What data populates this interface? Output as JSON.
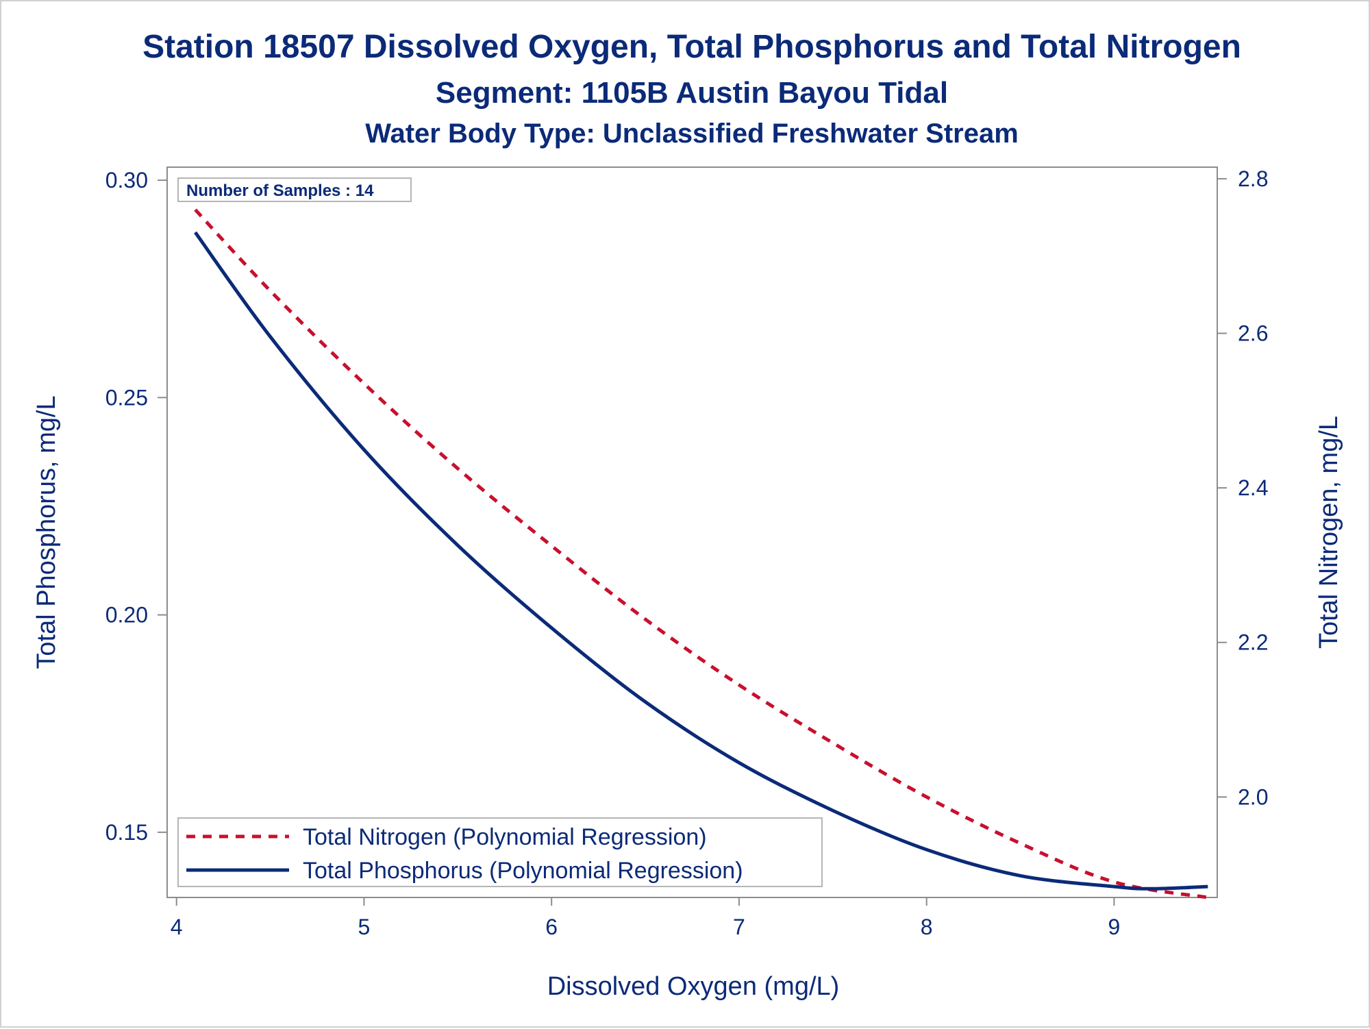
{
  "titles": {
    "line1": "Station 18507  Dissolved Oxygen, Total Phosphorus and Total Nitrogen",
    "line2": "Segment: 1105B  Austin Bayou Tidal",
    "line3": "Water Body Type: Unclassified Freshwater Stream"
  },
  "inset": {
    "samples_label": "Number of Samples : 14"
  },
  "legend": {
    "nitrogen": "Total Nitrogen (Polynomial Regression)",
    "phosphorus": "Total Phosphorus (Polynomial Regression)"
  },
  "colors": {
    "text": "#0b2a78",
    "nitrogen": "#c8102e",
    "phosphorus": "#0b2a78",
    "axis": "#8c8c8c"
  },
  "chart_data": {
    "type": "line",
    "title": "Station 18507  Dissolved Oxygen, Total Phosphorus and Total Nitrogen",
    "subtitle": [
      "Segment: 1105B  Austin Bayou Tidal",
      "Water Body Type: Unclassified Freshwater Stream"
    ],
    "xlabel": "Dissolved Oxygen (mg/L)",
    "ylabel": "Total Phosphorus, mg/L",
    "y2label": "Total Nitrogen, mg/L",
    "xlim": [
      3.95,
      9.55
    ],
    "ylim": [
      0.135,
      0.303
    ],
    "y2lim": [
      1.87,
      2.815
    ],
    "xticks": [
      "4",
      "5",
      "6",
      "7",
      "8",
      "9"
    ],
    "yticks": [
      "0.15",
      "0.20",
      "0.25",
      "0.30"
    ],
    "y2ticks": [
      "2.0",
      "2.2",
      "2.4",
      "2.6",
      "2.8"
    ],
    "grid": false,
    "legend_position": "bottom-left",
    "series": [
      {
        "name": "Total Nitrogen (Polynomial Regression)",
        "axis": "right",
        "style": "dashed",
        "x": [
          4.1,
          4.5,
          5.0,
          5.5,
          6.0,
          6.5,
          7.0,
          7.5,
          8.0,
          8.5,
          9.0,
          9.5
        ],
        "y": [
          2.76,
          2.655,
          2.535,
          2.425,
          2.325,
          2.23,
          2.145,
          2.07,
          2.0,
          1.94,
          1.89,
          1.87
        ]
      },
      {
        "name": "Total Phosphorus (Polynomial Regression)",
        "axis": "left",
        "style": "solid",
        "x": [
          4.1,
          4.5,
          5.0,
          5.5,
          6.0,
          6.5,
          7.0,
          7.5,
          8.0,
          8.5,
          9.0,
          9.2,
          9.5
        ],
        "y": [
          0.288,
          0.264,
          0.238,
          0.216,
          0.197,
          0.18,
          0.166,
          0.155,
          0.146,
          0.14,
          0.1375,
          0.137,
          0.1375
        ]
      }
    ]
  }
}
